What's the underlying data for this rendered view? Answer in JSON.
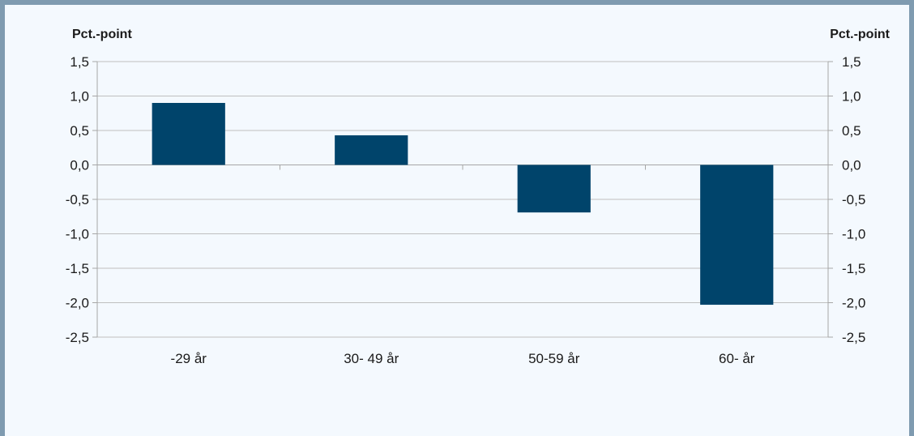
{
  "chart_data": {
    "type": "bar",
    "y_unit_left": "Pct.-point",
    "y_unit_right": "Pct.-point",
    "categories": [
      "-29 år",
      "30- 49 år",
      "50-59 år",
      "60- år"
    ],
    "values": [
      0.9,
      0.43,
      -0.69,
      -2.03
    ],
    "ylim": [
      -2.5,
      1.5
    ],
    "yticks": [
      "1,5",
      "1,0",
      "0,5",
      "0,0",
      "-0,5",
      "-1,0",
      "-1,5",
      "-2,0",
      "-2,5"
    ],
    "ytick_values": [
      1.5,
      1.0,
      0.5,
      0.0,
      -0.5,
      -1.0,
      -1.5,
      -2.0,
      -2.5
    ],
    "grid": true,
    "colors": {
      "bar": "#00446b",
      "axis": "#a6a6a6",
      "grid": "#bfbfbf"
    }
  }
}
